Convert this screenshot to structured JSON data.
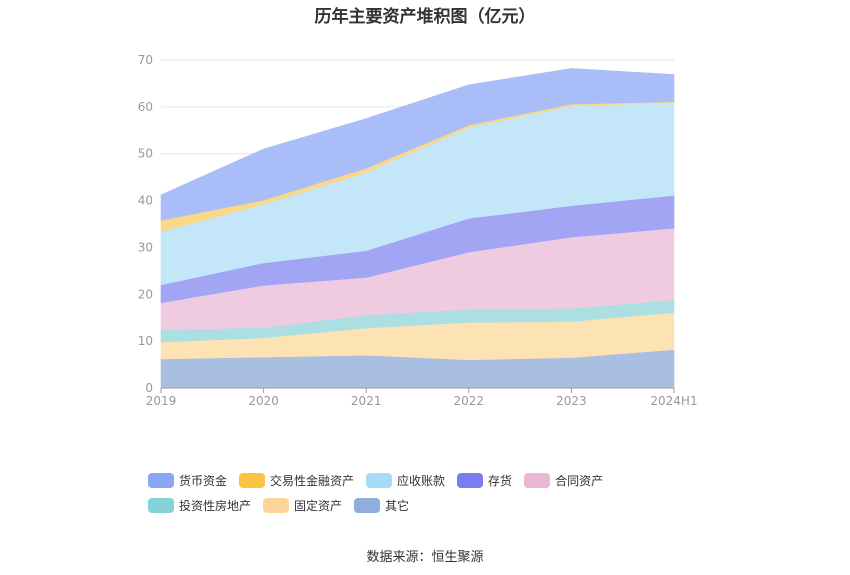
{
  "chart_data": {
    "type": "area",
    "stacked": true,
    "title": "历年主要资产堆积图（亿元）",
    "categories": [
      "2019",
      "2020",
      "2021",
      "2022",
      "2023",
      "2024H1"
    ],
    "ylim": [
      0,
      70
    ],
    "yticks": [
      0,
      10,
      20,
      30,
      40,
      50,
      60,
      70
    ],
    "grid": true,
    "legend_position": "bottom",
    "series": [
      {
        "name": "其它",
        "color": "#a9bfe1",
        "values": [
          6.2,
          6.6,
          7.0,
          6.0,
          6.5,
          8.2
        ]
      },
      {
        "name": "固定资产",
        "color": "#fde3b3",
        "values": [
          3.6,
          4.1,
          5.8,
          8.0,
          7.7,
          7.9
        ]
      },
      {
        "name": "投资性房地产",
        "color": "#acdfe2",
        "values": [
          2.6,
          2.2,
          2.8,
          2.8,
          2.8,
          2.7
        ]
      },
      {
        "name": "合同资产",
        "color": "#efcbe1",
        "values": [
          5.8,
          9.0,
          8.0,
          12.2,
          15.2,
          15.3
        ]
      },
      {
        "name": "存货",
        "color": "#a2a4f4",
        "values": [
          3.8,
          4.8,
          5.7,
          7.2,
          6.7,
          7.0
        ]
      },
      {
        "name": "应收账款",
        "color": "#c3e6f9",
        "values": [
          11.4,
          12.5,
          16.7,
          19.4,
          21.3,
          19.8
        ]
      },
      {
        "name": "交易性金融资产",
        "color": "#fbd888",
        "values": [
          2.4,
          0.9,
          0.9,
          0.5,
          0.4,
          0.2
        ]
      },
      {
        "name": "货币资金",
        "color": "#a9bef8",
        "values": [
          5.4,
          10.9,
          10.6,
          8.6,
          7.6,
          5.8
        ]
      }
    ],
    "source": "数据来源：恒生聚源"
  },
  "legend_items": [
    {
      "name": "货币资金",
      "color": "#8aa6f6"
    },
    {
      "name": "交易性金融资产",
      "color": "#fbc341"
    },
    {
      "name": "应收账款",
      "color": "#a7dcf8"
    },
    {
      "name": "存货",
      "color": "#7b7cf0"
    },
    {
      "name": "合同资产",
      "color": "#e9b6d6"
    },
    {
      "name": "投资性房地产",
      "color": "#84d3d7"
    },
    {
      "name": "固定资产",
      "color": "#fdd59b"
    },
    {
      "name": "其它",
      "color": "#8fadde"
    }
  ]
}
